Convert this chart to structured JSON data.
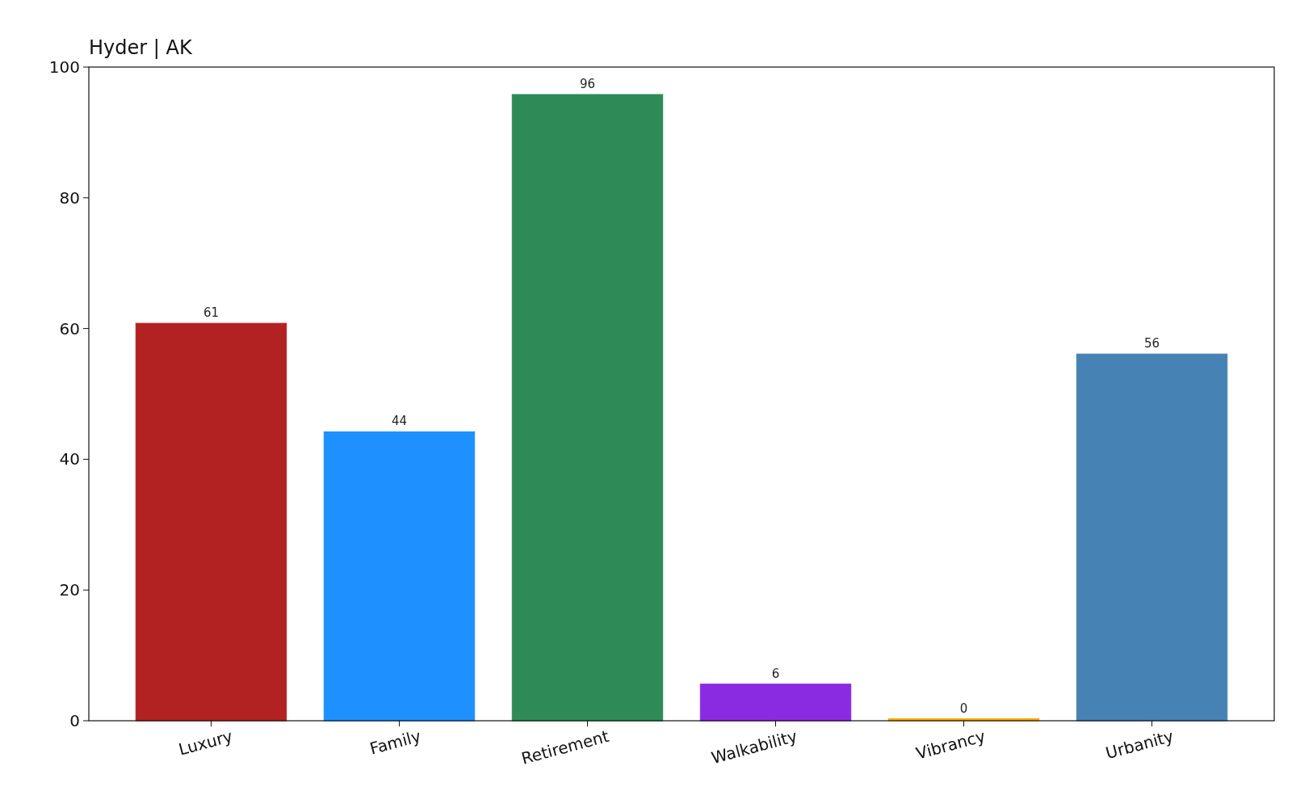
{
  "chart_data": {
    "type": "bar",
    "title": "Hyder | AK",
    "categories": [
      "Luxury",
      "Family",
      "Retirement",
      "Walkability",
      "Vibrancy",
      "Urbanity"
    ],
    "values": [
      60.8,
      44.2,
      95.8,
      5.6,
      0.3,
      56.1
    ],
    "value_labels": [
      "61",
      "44",
      "96",
      "6",
      "0",
      "56"
    ],
    "colors": [
      "#b22222",
      "#1e90ff",
      "#2e8b57",
      "#8a2be2",
      "#ffa500",
      "#4682b4"
    ],
    "ylim": [
      0,
      100
    ],
    "yticks": [
      0,
      20,
      40,
      60,
      80,
      100
    ]
  }
}
